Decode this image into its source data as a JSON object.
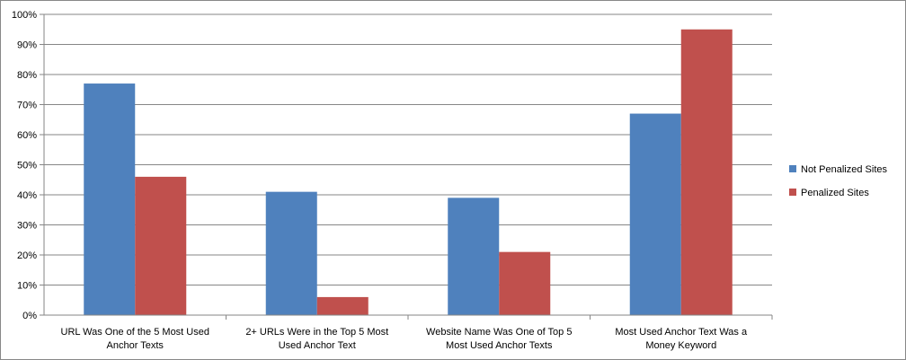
{
  "chart_data": {
    "type": "bar",
    "categories": [
      [
        "URL Was One of the 5 Most Used",
        "Anchor Texts"
      ],
      [
        "2+ URLs Were in the Top 5 Most",
        "Used Anchor Text"
      ],
      [
        "Website Name Was One of Top 5",
        "Most Used Anchor Texts"
      ],
      [
        "Most Used Anchor Text Was a",
        "Money Keyword"
      ]
    ],
    "series": [
      {
        "name": "Not Penalized Sites",
        "color": "#4F81BD",
        "values": [
          77,
          41,
          39,
          67
        ]
      },
      {
        "name": "Penalized Sites",
        "color": "#C0504D",
        "values": [
          46,
          6,
          21,
          95
        ]
      }
    ],
    "yticks": [
      "0%",
      "10%",
      "20%",
      "30%",
      "40%",
      "50%",
      "60%",
      "70%",
      "80%",
      "90%",
      "100%"
    ],
    "ylim": [
      0,
      100
    ],
    "grid": true,
    "legend_position": "right"
  }
}
